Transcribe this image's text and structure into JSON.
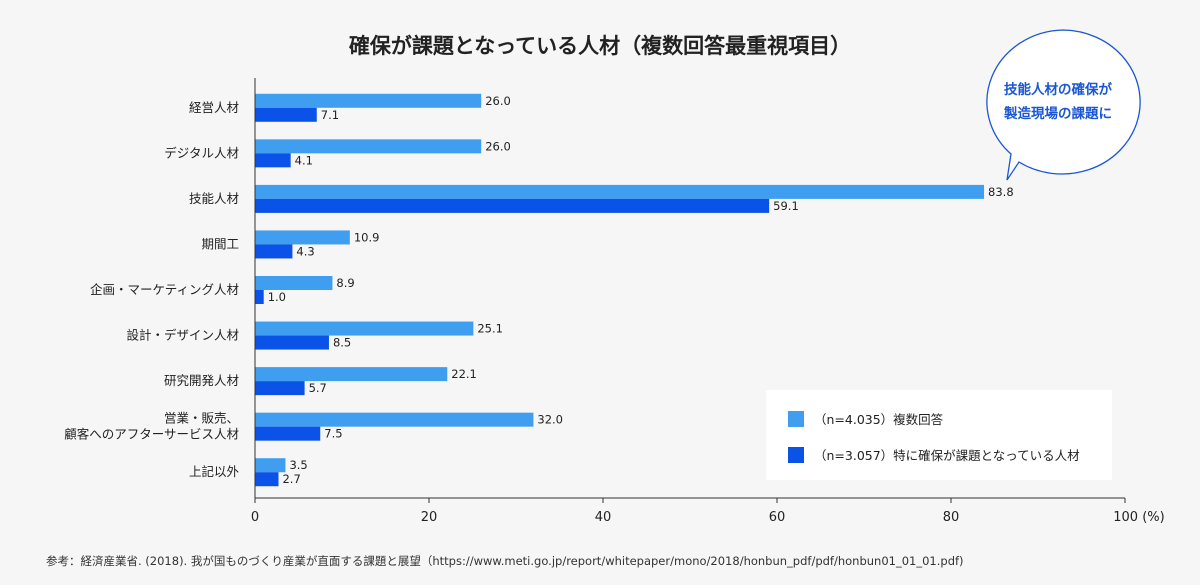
{
  "chart_data": {
    "type": "bar",
    "orientation": "horizontal",
    "title": "確保が課題となっている人材（複数回答最重視項目）",
    "categories": [
      "経営人材",
      "デジタル人材",
      "技能人材",
      "期間工",
      "企画・マーケティング人材",
      "設計・デザイン人材",
      "研究開発人材",
      "営業・販売、\n顧客へのアフターサービス人材",
      "上記以外"
    ],
    "series": [
      {
        "name": "（n=4.035）複数回答",
        "color": "#3f9ef0",
        "values": [
          26.0,
          26.0,
          83.8,
          10.9,
          8.9,
          25.1,
          22.1,
          32.0,
          3.5
        ]
      },
      {
        "name": "（n=3.057）特に確保が課題となっている人材",
        "color": "#0b52e8",
        "values": [
          7.1,
          4.1,
          59.1,
          4.3,
          1.0,
          8.5,
          5.7,
          7.5,
          2.7
        ]
      }
    ],
    "xlim": [
      0,
      100
    ],
    "xticks": [
      0,
      20,
      40,
      60,
      80,
      100
    ],
    "xunit": "(%)",
    "legend_position": "bottom-right",
    "grid": false
  },
  "callout": {
    "line1": "技能人材の確保が",
    "line2": "製造現場の課題に",
    "color": "#1a56d6"
  },
  "source": "参考：経済産業省. (2018). 我が国ものづくり産業が直面する課題と展望（https://www.meti.go.jp/report/whitepaper/mono/2018/honbun_pdf/pdf/honbun01_01_01.pdf)"
}
